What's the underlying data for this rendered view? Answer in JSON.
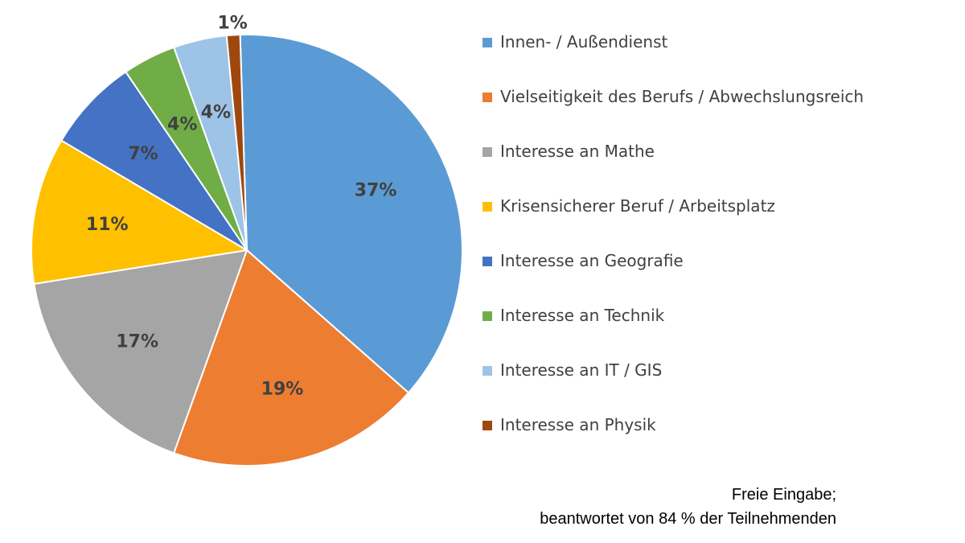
{
  "chart_data": {
    "type": "pie",
    "title": "",
    "slices": [
      {
        "label": "Innen- / Außendienst",
        "value": 37,
        "display": "37%",
        "color": "#5B9BD5"
      },
      {
        "label": "Vielseitigkeit des Berufs / Abwechslungsreich",
        "value": 19,
        "display": "19%",
        "color": "#ED7D31"
      },
      {
        "label": "Interesse an Mathe",
        "value": 17,
        "display": "17%",
        "color": "#A5A5A5"
      },
      {
        "label": "Krisensicherer Beruf / Arbeitsplatz",
        "value": 11,
        "display": "11%",
        "color": "#FFC000"
      },
      {
        "label": "Interesse an Geografie",
        "value": 7,
        "display": "7%",
        "color": "#4472C4"
      },
      {
        "label": "Interesse an Technik",
        "value": 4,
        "display": "4%",
        "color": "#70AD47"
      },
      {
        "label": "Interesse an IT / GIS",
        "value": 4,
        "display": "4%",
        "color": "#9DC3E6"
      },
      {
        "label": "Interesse an Physik",
        "value": 1,
        "display": "1%",
        "color": "#9E480E"
      }
    ],
    "legend_position": "right"
  },
  "footnote": {
    "line1": "Freie Eingabe;",
    "line2": "beantwortet von 84 % der Teilnehmenden"
  }
}
